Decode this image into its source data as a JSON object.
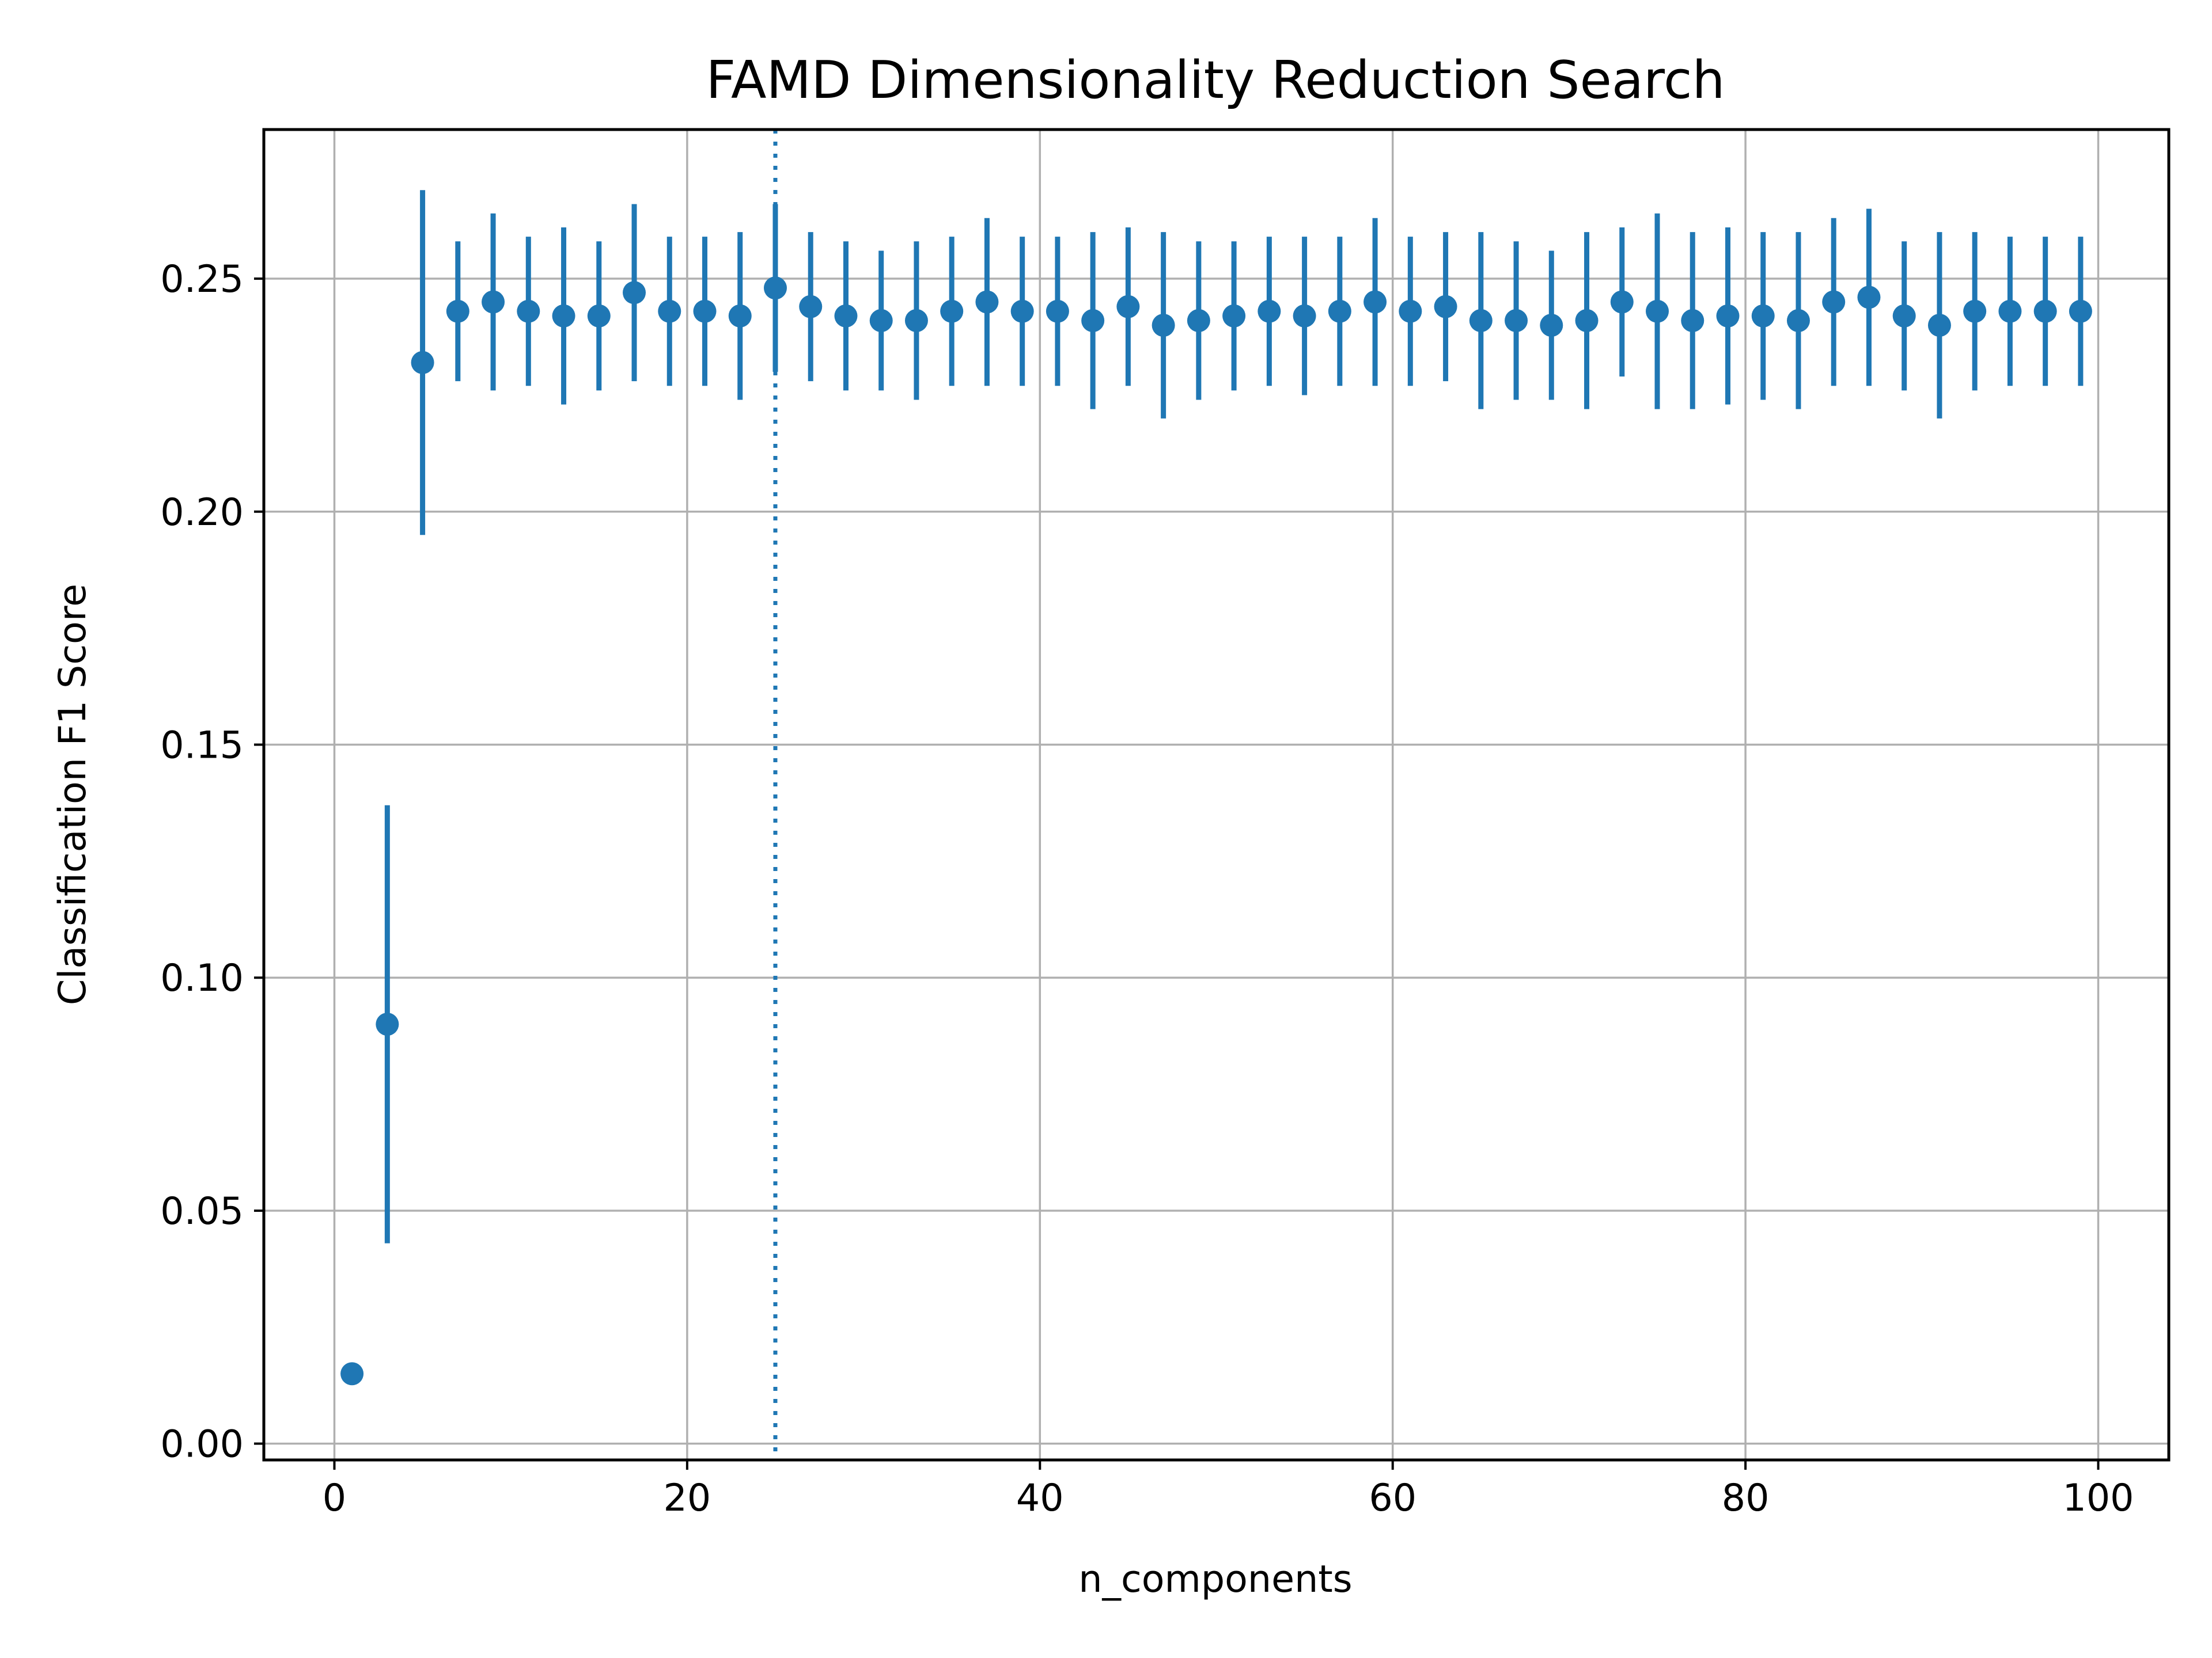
{
  "chart_data": {
    "type": "scatter",
    "title": "FAMD Dimensionality Reduction Search",
    "xlabel": "n_components",
    "ylabel": "Classification F1 Score",
    "xlim": [
      -4,
      104
    ],
    "ylim": [
      -0.0035,
      0.282
    ],
    "xticks": [
      0,
      20,
      40,
      60,
      80,
      100
    ],
    "xtick_labels": [
      "0",
      "20",
      "40",
      "60",
      "80",
      "100"
    ],
    "yticks": [
      0.0,
      0.05,
      0.1,
      0.15,
      0.2,
      0.25
    ],
    "ytick_labels": [
      "0.00",
      "0.05",
      "0.10",
      "0.15",
      "0.20",
      "0.25"
    ],
    "grid": true,
    "marker_color": "#1f77b4",
    "reference_line": {
      "x": 25,
      "style": "dotted"
    },
    "series": [
      {
        "x": [
          1,
          3,
          5,
          7,
          9,
          11,
          13,
          15,
          17,
          19,
          21,
          23,
          25,
          27,
          29,
          31,
          33,
          35,
          37,
          39,
          41,
          43,
          45,
          47,
          49,
          51,
          53,
          55,
          57,
          59,
          61,
          63,
          65,
          67,
          69,
          71,
          73,
          75,
          77,
          79,
          81,
          83,
          85,
          87,
          89,
          91,
          93,
          95,
          97,
          99
        ],
        "y": [
          0.015,
          0.09,
          0.232,
          0.243,
          0.245,
          0.243,
          0.242,
          0.242,
          0.247,
          0.243,
          0.243,
          0.242,
          0.248,
          0.244,
          0.242,
          0.241,
          0.241,
          0.243,
          0.245,
          0.243,
          0.243,
          0.241,
          0.244,
          0.24,
          0.241,
          0.242,
          0.243,
          0.242,
          0.243,
          0.245,
          0.243,
          0.244,
          0.241,
          0.241,
          0.24,
          0.241,
          0.245,
          0.243,
          0.241,
          0.242,
          0.242,
          0.241,
          0.245,
          0.246,
          0.242,
          0.24,
          0.243,
          0.243,
          0.243,
          0.243
        ],
        "yerr": [
          0.0,
          0.047,
          0.037,
          0.015,
          0.019,
          0.016,
          0.019,
          0.016,
          0.019,
          0.016,
          0.016,
          0.018,
          0.018,
          0.016,
          0.016,
          0.015,
          0.017,
          0.016,
          0.018,
          0.016,
          0.016,
          0.019,
          0.017,
          0.02,
          0.017,
          0.016,
          0.016,
          0.017,
          0.016,
          0.018,
          0.016,
          0.016,
          0.019,
          0.017,
          0.016,
          0.019,
          0.016,
          0.021,
          0.019,
          0.019,
          0.018,
          0.019,
          0.018,
          0.019,
          0.016,
          0.02,
          0.017,
          0.016,
          0.016,
          0.016
        ]
      }
    ]
  }
}
